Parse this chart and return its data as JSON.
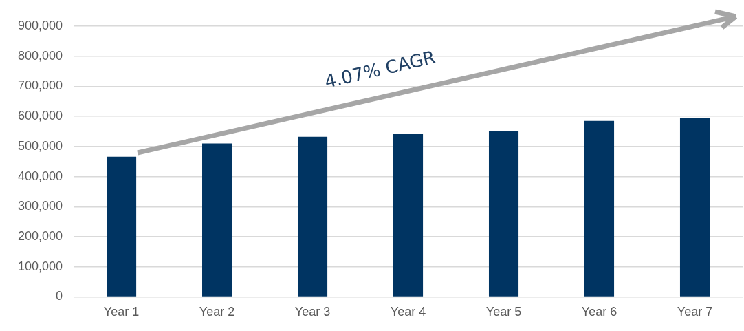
{
  "chart_data": {
    "type": "bar",
    "categories": [
      "Year 1",
      "Year 2",
      "Year 3",
      "Year 4",
      "Year 5",
      "Year 6",
      "Year 7"
    ],
    "values": [
      466000,
      510000,
      532000,
      541000,
      552000,
      585000,
      594000
    ],
    "color": "#003462",
    "ylim": [
      0,
      900000
    ],
    "yticks": [
      0,
      {
        "value": 100000,
        "label": "100,000"
      },
      {
        "value": 200000,
        "label": "200,000"
      },
      {
        "value": 300000,
        "label": "300,000"
      },
      {
        "value": 400000,
        "label": "400,000"
      },
      {
        "value": 500000,
        "label": "500,000"
      },
      {
        "value": 600000,
        "label": "600,000"
      },
      {
        "value": 700000,
        "label": "700,000"
      },
      {
        "value": 800000,
        "label": "800,000"
      },
      {
        "value": 900000,
        "label": "900,000"
      }
    ],
    "grid": "y",
    "annotations": [
      "4.07% CAGR"
    ]
  }
}
